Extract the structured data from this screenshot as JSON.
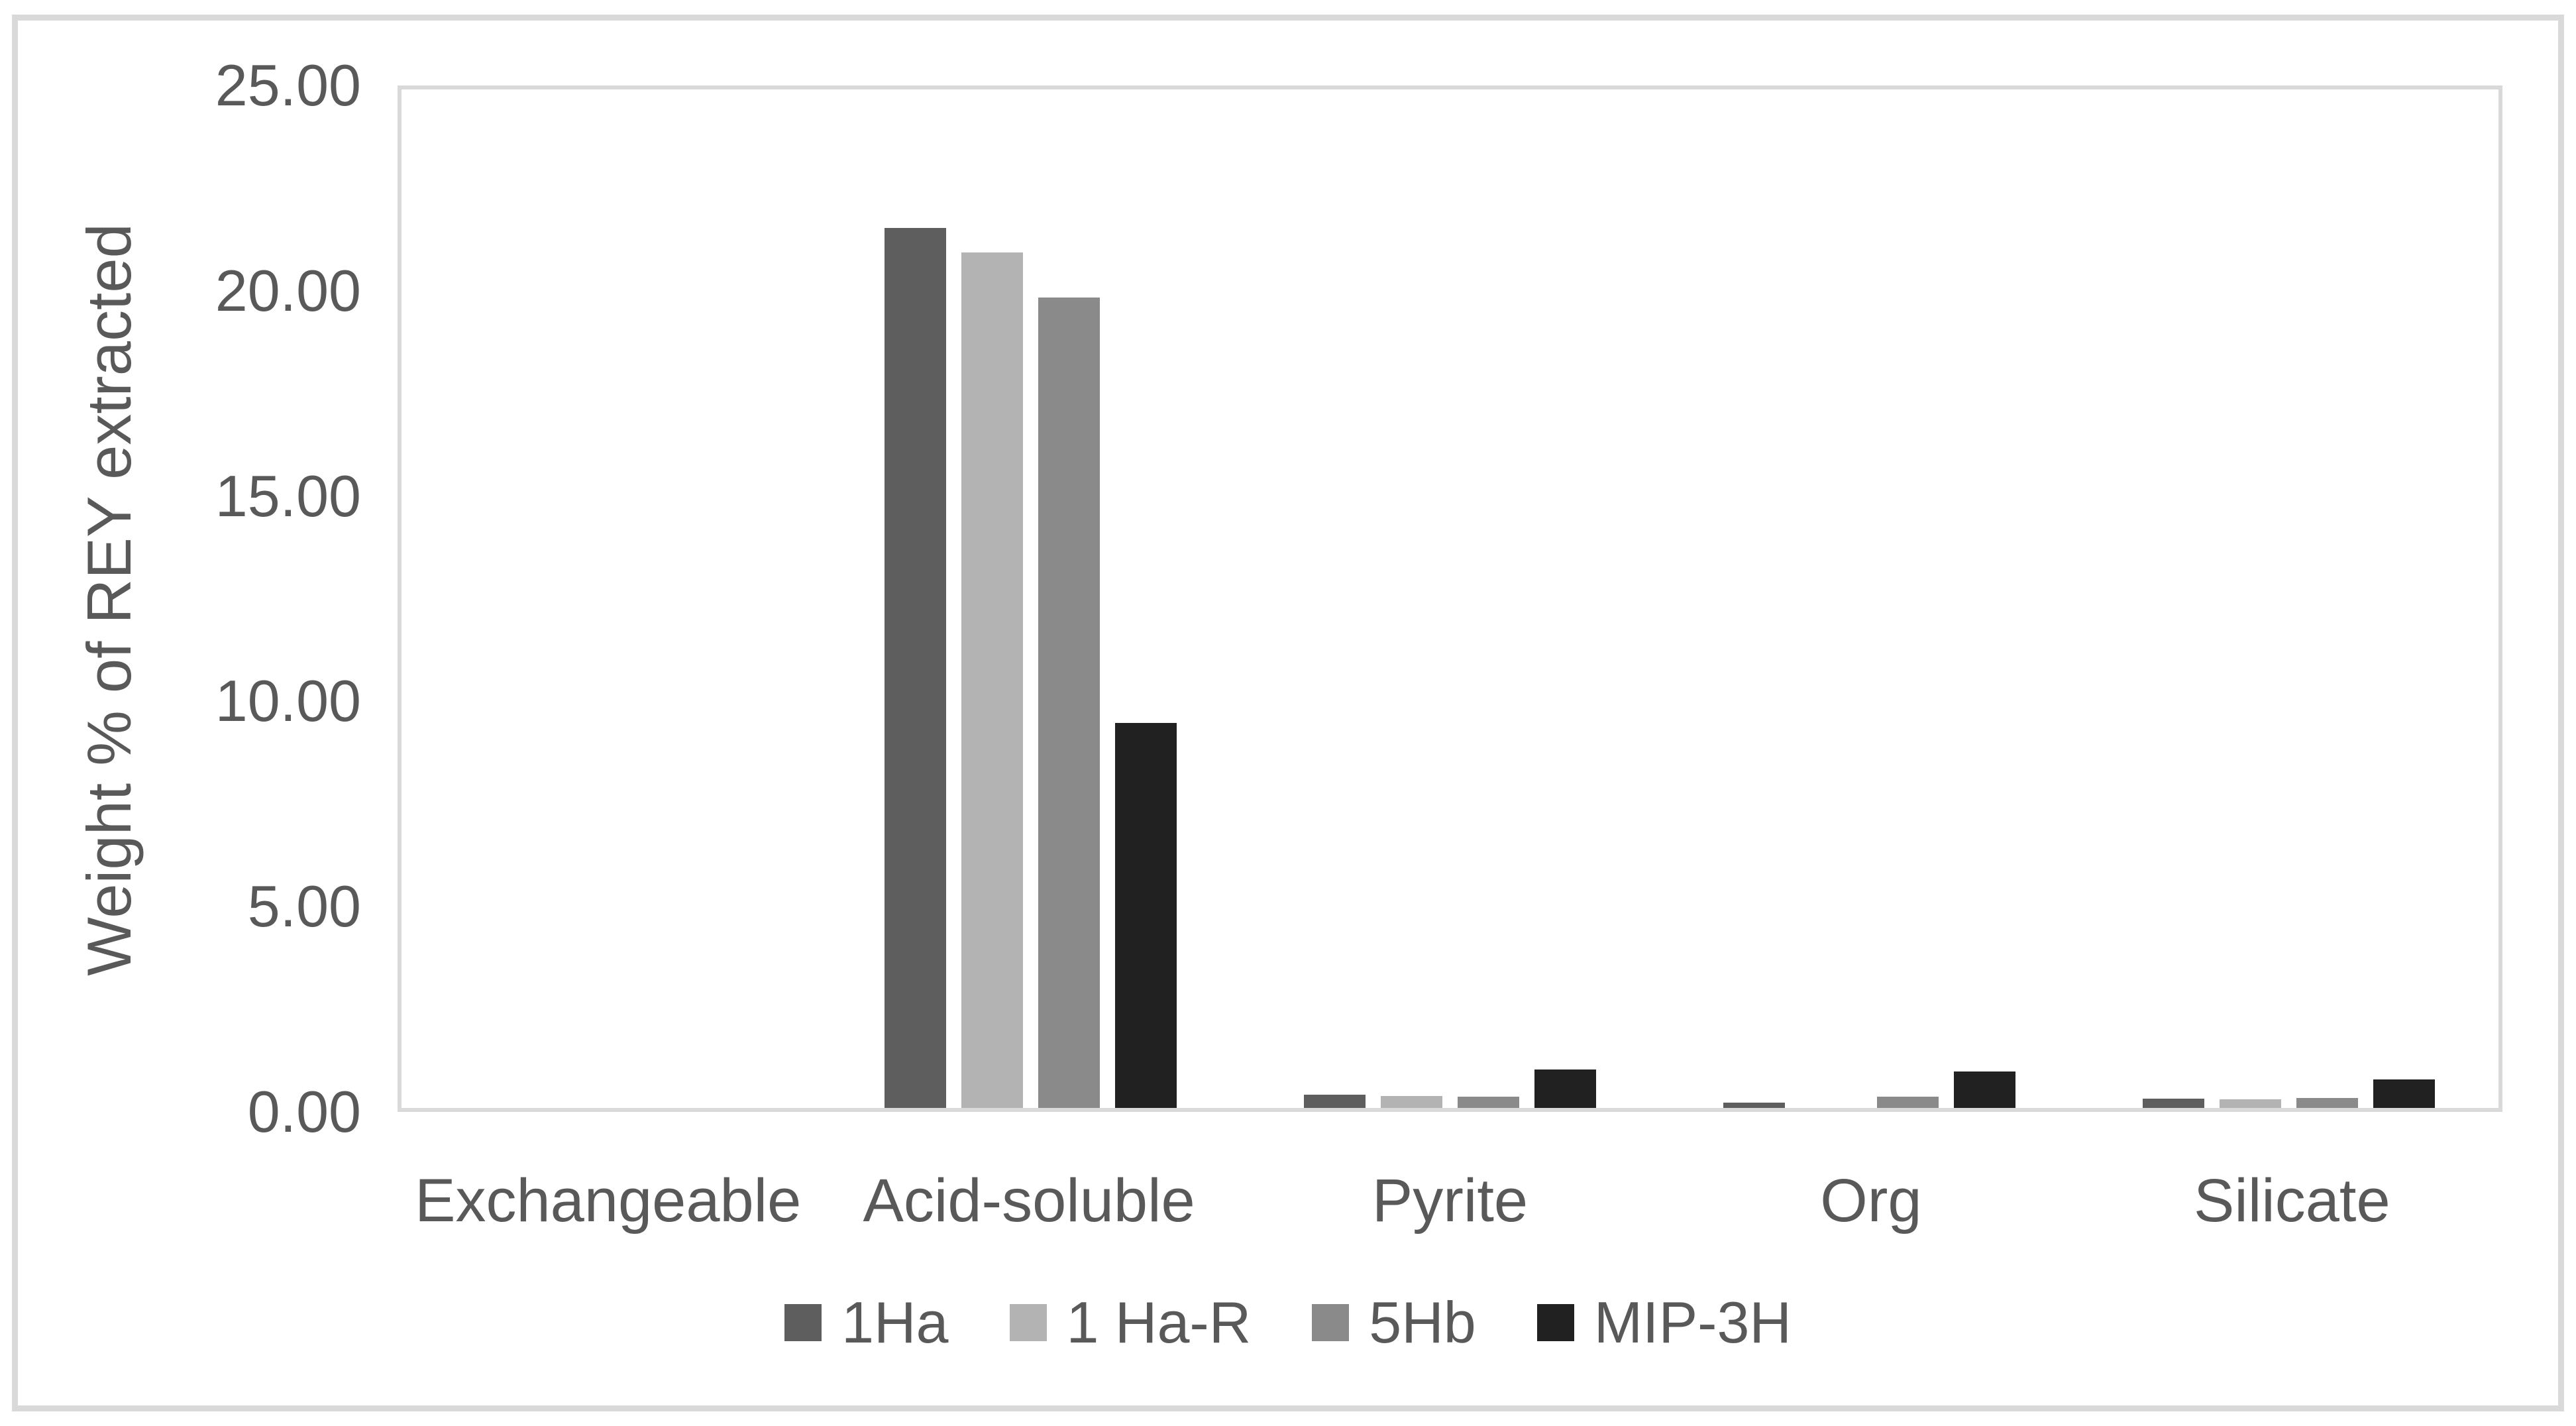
{
  "chart_data": {
    "type": "bar",
    "title": "",
    "xlabel": "",
    "ylabel": "Weight % of REY extracted",
    "categories": [
      "Exchangeable",
      "Acid-soluble",
      "Pyrite",
      "Org",
      "Silicate"
    ],
    "series": [
      {
        "name": "1Ha",
        "color": "#5e5e5e",
        "values": [
          0.0,
          21.6,
          0.33,
          0.13,
          0.23
        ]
      },
      {
        "name": "1 Ha-R",
        "color": "#b3b3b3",
        "values": [
          0.0,
          21.0,
          0.3,
          0.0,
          0.21
        ]
      },
      {
        "name": "5Hb",
        "color": "#8a8a8a",
        "values": [
          0.0,
          19.9,
          0.27,
          0.27,
          0.24
        ]
      },
      {
        "name": "MIP-3H",
        "color": "#212121",
        "values": [
          0.0,
          9.45,
          0.95,
          0.9,
          0.7
        ]
      }
    ],
    "ylim": [
      0,
      25
    ],
    "ytick_labels_top_down": [
      "25.00",
      "20.00",
      "15.00",
      "10.00",
      "5.00",
      "0.00"
    ],
    "grid": false,
    "legend_position": "bottom",
    "legend_entries": [
      "1Ha",
      "1 Ha-R",
      "5Hb",
      "MIP-3H"
    ]
  },
  "colors": {
    "background": "#ffffff",
    "outer_border": "#d9d9d9",
    "plot_border": "#d9d9d9",
    "text": "#595959"
  }
}
